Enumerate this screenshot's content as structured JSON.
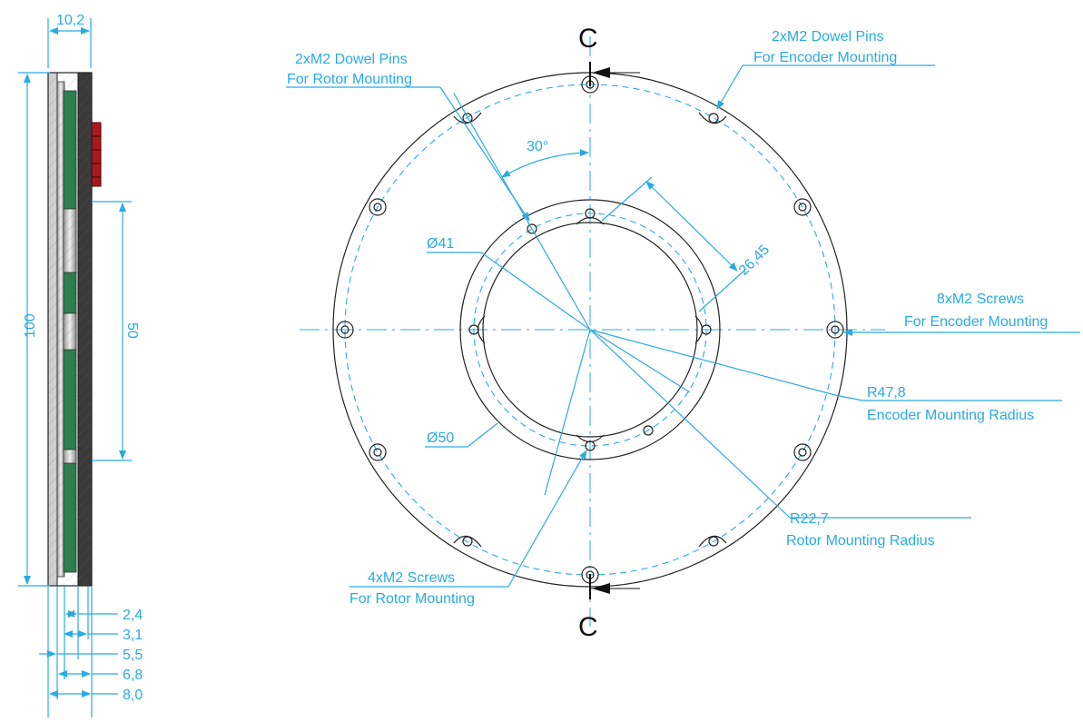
{
  "side_view": {
    "overall_thickness": "10,2",
    "overall_height": "100",
    "inner_height": "50",
    "layer_dims": [
      "2,4",
      "3,1",
      "5,5",
      "6,8",
      "8,0"
    ]
  },
  "front_view": {
    "section_label_top": "C",
    "section_label_bottom": "C",
    "angle_label": "30°",
    "dia_inner": "Ø41",
    "dia_mid": "Ø50",
    "width_dim": "26,45",
    "callouts": {
      "dowel_rotor": {
        "line1": "2xM2 Dowel Pins",
        "line2": "For Rotor Mounting"
      },
      "dowel_encoder": {
        "line1": "2xM2 Dowel Pins",
        "line2": "For Encoder Mounting"
      },
      "screws_encoder": {
        "line1": "8xM2 Screws",
        "line2": "For Encoder Mounting"
      },
      "radius_encoder": {
        "line1": "R47,8",
        "line2": "Encoder Mounting Radius"
      },
      "radius_rotor": {
        "line1": "R22,7",
        "line2": "Rotor Mounting Radius"
      },
      "screws_rotor": {
        "line1": "4xM2 Screws",
        "line2": "For Rotor Mounting"
      }
    }
  },
  "colors": {
    "dimension": "#29abe2",
    "outline": "#222222",
    "pcb_green": "#2e7d4f",
    "connector_red": "#b0151b"
  }
}
